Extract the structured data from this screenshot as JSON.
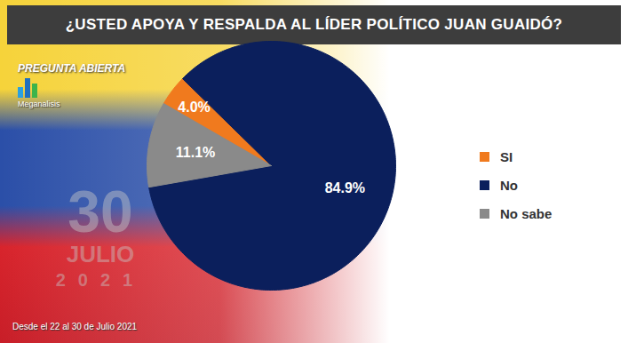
{
  "chart_data": {
    "type": "pie",
    "title": "¿USTED APOYA Y RESPALDA AL LÍDER POLÍTICO JUAN GUAIDÓ?",
    "categories": [
      "SI",
      "No",
      "No sabe"
    ],
    "values": [
      4.0,
      84.9,
      11.1
    ],
    "value_labels": [
      "4.0%",
      "84.9%",
      "11.1%"
    ],
    "colors": [
      "#f07a1e",
      "#0b1f5c",
      "#8a8a8a"
    ],
    "data_labels": true,
    "legend": "right",
    "tick_labels": false,
    "annotations": [
      "PREGUNTA ABIERTA",
      "Meganalisis",
      "30",
      "JULIO",
      "2021"
    ],
    "caption": "Desde el 22 al 30 de Julio 2021"
  }
}
